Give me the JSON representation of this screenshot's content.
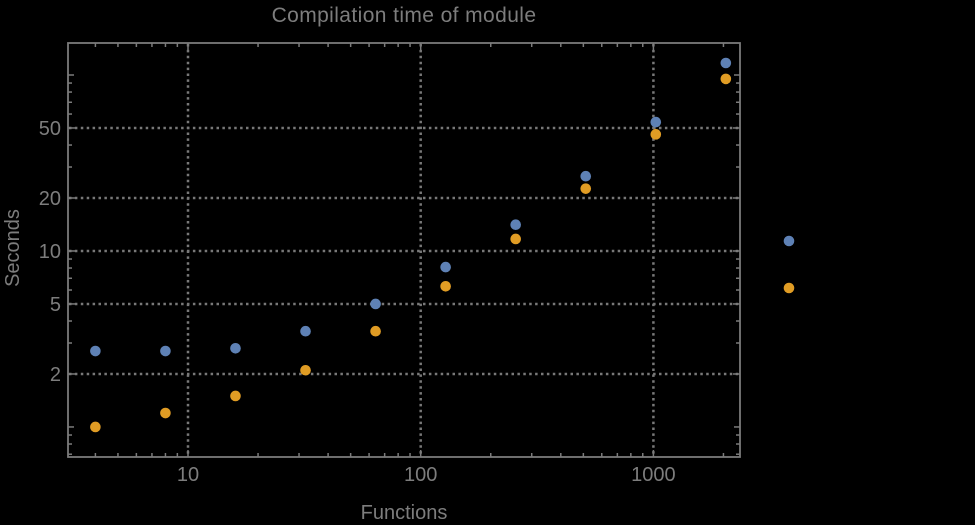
{
  "chart_data": {
    "type": "scatter",
    "title": "Compilation time of module",
    "xlabel": "Functions",
    "ylabel": "Seconds",
    "x_scale": "log",
    "y_scale": "log",
    "xlim": [
      3.05,
      2356
    ],
    "ylim": [
      0.675,
      152
    ],
    "grid": "dotted",
    "x": [
      4,
      8,
      16,
      32,
      64,
      128,
      256,
      512,
      1024,
      2048
    ],
    "series": [
      {
        "name": "blue",
        "color": "#5e81b5",
        "values": [
          2.7,
          2.7,
          2.8,
          3.5,
          5.0,
          8.1,
          14.1,
          26.6,
          54,
          117
        ]
      },
      {
        "name": "orange",
        "color": "#e09c24",
        "values": [
          1.0,
          1.2,
          1.5,
          2.1,
          3.5,
          6.3,
          11.7,
          22.6,
          46,
          95
        ]
      }
    ],
    "x_gridlines": [
      10,
      100,
      1000
    ],
    "y_gridlines": [
      2,
      5,
      10,
      20,
      50
    ],
    "x_ticks": {
      "major": [
        {
          "v": 10,
          "label": "10"
        },
        {
          "v": 100,
          "label": "100"
        },
        {
          "v": 1000,
          "label": "1000"
        }
      ],
      "minor": [
        4,
        5,
        6,
        7,
        8,
        9,
        20,
        30,
        40,
        50,
        60,
        70,
        80,
        90,
        200,
        300,
        400,
        500,
        600,
        700,
        800,
        900,
        2000
      ]
    },
    "y_ticks": {
      "major": [
        {
          "v": 2,
          "label": "2"
        },
        {
          "v": 5,
          "label": "5"
        },
        {
          "v": 10,
          "label": "10"
        },
        {
          "v": 20,
          "label": "20"
        },
        {
          "v": 50,
          "label": "50"
        }
      ],
      "unlabeled_major": [
        1,
        100
      ],
      "minor": [
        0.7,
        0.8,
        0.9,
        3,
        4,
        6,
        7,
        8,
        9,
        30,
        40,
        60,
        70,
        80,
        90
      ]
    },
    "legend_markers": [
      {
        "name": "blue-series-marker",
        "color": "#5e81b5"
      },
      {
        "name": "orange-series-marker",
        "color": "#e09c24"
      }
    ]
  },
  "colors": {
    "background": "#000000",
    "text": "#7d7d7d",
    "frame": "#7b7b7b",
    "grid": "#787878"
  }
}
